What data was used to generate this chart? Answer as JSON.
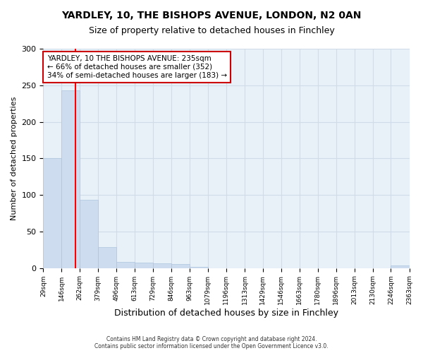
{
  "title": "YARDLEY, 10, THE BISHOPS AVENUE, LONDON, N2 0AN",
  "subtitle": "Size of property relative to detached houses in Finchley",
  "xlabel": "Distribution of detached houses by size in Finchley",
  "ylabel": "Number of detached properties",
  "bin_edges": [
    29,
    146,
    262,
    379,
    496,
    613,
    729,
    846,
    963,
    1079,
    1196,
    1313,
    1429,
    1546,
    1663,
    1780,
    1896,
    2013,
    2130,
    2246,
    2363
  ],
  "bar_heights": [
    150,
    243,
    93,
    29,
    8,
    7,
    6,
    5,
    2,
    0,
    0,
    0,
    0,
    0,
    0,
    0,
    0,
    0,
    0,
    3
  ],
  "bar_color": "#cddcee",
  "bar_edgecolor": "#adc4de",
  "red_line_x": 235,
  "annotation_text": "YARDLEY, 10 THE BISHOPS AVENUE: 235sqm\n← 66% of detached houses are smaller (352)\n34% of semi-detached houses are larger (183) →",
  "annotation_box_color": "#ffffff",
  "annotation_box_edgecolor": "#cc0000",
  "ylim": [
    0,
    300
  ],
  "yticks": [
    0,
    50,
    100,
    150,
    200,
    250,
    300
  ],
  "tick_labels": [
    "29sqm",
    "146sqm",
    "262sqm",
    "379sqm",
    "496sqm",
    "613sqm",
    "729sqm",
    "846sqm",
    "963sqm",
    "1079sqm",
    "1196sqm",
    "1313sqm",
    "1429sqm",
    "1546sqm",
    "1663sqm",
    "1780sqm",
    "1896sqm",
    "2013sqm",
    "2130sqm",
    "2246sqm",
    "2363sqm"
  ],
  "footer_text": "Contains HM Land Registry data © Crown copyright and database right 2024.\nContains public sector information licensed under the Open Government Licence v3.0.",
  "background_color": "#ffffff",
  "grid_color": "#d0dce8",
  "ax_background": "#e8f0f8"
}
